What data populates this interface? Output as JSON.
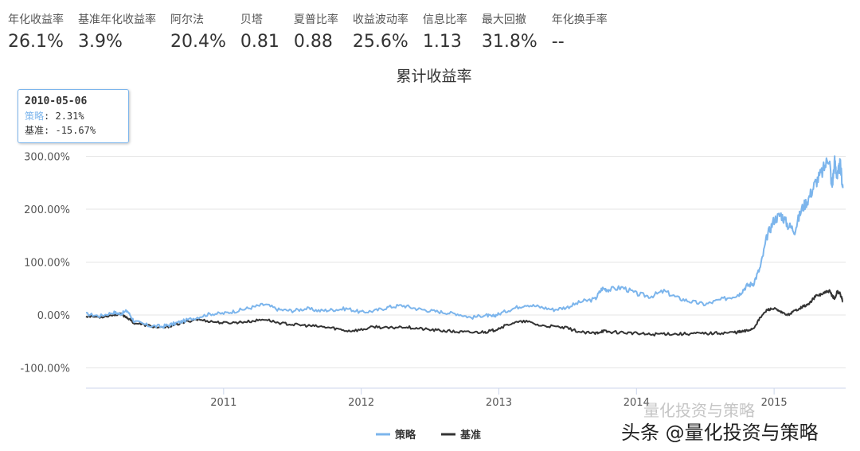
{
  "stats": [
    {
      "label": "年化收益率",
      "value": "26.1%"
    },
    {
      "label": "基准年化收益率",
      "value": "3.9%"
    },
    {
      "label": "阿尔法",
      "value": "20.4%"
    },
    {
      "label": "贝塔",
      "value": "0.81"
    },
    {
      "label": "夏普比率",
      "value": "0.88"
    },
    {
      "label": "收益波动率",
      "value": "25.6%"
    },
    {
      "label": "信息比率",
      "value": "1.13"
    },
    {
      "label": "最大回撤",
      "value": "31.8%"
    },
    {
      "label": "年化换手率",
      "value": "--"
    }
  ],
  "tooltip": {
    "date": "2010-05-06",
    "series1_name": "策略",
    "series1_value": "2.31%",
    "series2_name": "基准",
    "series2_value": "-15.67%"
  },
  "watermark": {
    "line1": "量化投资与策略",
    "line2": "头条 @量化投资与策略"
  },
  "chart_data": {
    "type": "line",
    "title": "累计收益率",
    "ylim": [
      -130,
      320
    ],
    "xlim": [
      2010.0,
      2015.52
    ],
    "yticks": [
      -100,
      0,
      100,
      200,
      300
    ],
    "ytick_labels": [
      "-100.00%",
      "0.00%",
      "100.00%",
      "200.00%",
      "300.00%"
    ],
    "xticks": [
      2011,
      2012,
      2013,
      2014,
      2015
    ],
    "xtick_labels": [
      "2011",
      "2012",
      "2013",
      "2014",
      "2015"
    ],
    "grid": "horizontal",
    "legend": "bottom-center",
    "colors": {
      "strategy": "#7cb5ec",
      "benchmark": "#333333"
    },
    "series": [
      {
        "name": "策略",
        "x": [
          2010.0,
          2010.1,
          2010.2,
          2010.25,
          2010.3,
          2010.35,
          2010.45,
          2010.55,
          2010.62,
          2010.7,
          2010.8,
          2010.9,
          2011.0,
          2011.1,
          2011.2,
          2011.3,
          2011.4,
          2011.5,
          2011.6,
          2011.7,
          2011.8,
          2011.9,
          2012.0,
          2012.1,
          2012.2,
          2012.3,
          2012.4,
          2012.5,
          2012.6,
          2012.7,
          2012.8,
          2012.9,
          2012.95,
          2013.0,
          2013.1,
          2013.2,
          2013.3,
          2013.4,
          2013.5,
          2013.6,
          2013.7,
          2013.75,
          2013.8,
          2013.9,
          2014.0,
          2014.1,
          2014.2,
          2014.3,
          2014.4,
          2014.5,
          2014.6,
          2014.7,
          2014.75,
          2014.8,
          2014.85,
          2014.9,
          2014.95,
          2015.0,
          2015.05,
          2015.1,
          2015.15,
          2015.2,
          2015.25,
          2015.3,
          2015.35,
          2015.4,
          2015.42,
          2015.44,
          2015.46,
          2015.48,
          2015.5
        ],
        "y": [
          2,
          -2,
          5,
          2,
          8,
          -12,
          -20,
          -22,
          -18,
          -12,
          -5,
          2,
          3,
          8,
          14,
          20,
          10,
          8,
          12,
          8,
          10,
          12,
          5,
          8,
          15,
          18,
          12,
          8,
          5,
          2,
          -5,
          0,
          -3,
          2,
          12,
          20,
          15,
          10,
          15,
          25,
          30,
          50,
          48,
          52,
          40,
          35,
          45,
          32,
          25,
          20,
          28,
          35,
          40,
          55,
          60,
          90,
          150,
          180,
          190,
          170,
          160,
          200,
          220,
          250,
          270,
          300,
          240,
          290,
          260,
          285,
          240
        ]
      },
      {
        "name": "基准",
        "x": [
          2010.0,
          2010.1,
          2010.2,
          2010.25,
          2010.3,
          2010.35,
          2010.45,
          2010.55,
          2010.62,
          2010.7,
          2010.8,
          2010.9,
          2011.0,
          2011.1,
          2011.2,
          2011.3,
          2011.4,
          2011.5,
          2011.6,
          2011.7,
          2011.8,
          2011.9,
          2012.0,
          2012.1,
          2012.2,
          2012.3,
          2012.4,
          2012.5,
          2012.6,
          2012.7,
          2012.8,
          2012.9,
          2012.95,
          2013.0,
          2013.1,
          2013.2,
          2013.3,
          2013.4,
          2013.5,
          2013.6,
          2013.7,
          2013.75,
          2013.8,
          2013.9,
          2014.0,
          2014.1,
          2014.2,
          2014.3,
          2014.4,
          2014.5,
          2014.6,
          2014.7,
          2014.75,
          2014.8,
          2014.85,
          2014.9,
          2014.95,
          2015.0,
          2015.05,
          2015.1,
          2015.15,
          2015.2,
          2015.25,
          2015.3,
          2015.35,
          2015.4,
          2015.42,
          2015.44,
          2015.46,
          2015.48,
          2015.5
        ],
        "y": [
          -2,
          -4,
          0,
          2,
          -5,
          -15,
          -20,
          -25,
          -20,
          -15,
          -8,
          -12,
          -15,
          -14,
          -12,
          -8,
          -15,
          -18,
          -20,
          -22,
          -25,
          -30,
          -28,
          -22,
          -25,
          -22,
          -25,
          -28,
          -30,
          -32,
          -33,
          -32,
          -30,
          -25,
          -15,
          -12,
          -20,
          -22,
          -25,
          -33,
          -35,
          -30,
          -32,
          -33,
          -35,
          -37,
          -35,
          -36,
          -35,
          -35,
          -34,
          -33,
          -32,
          -30,
          -25,
          -5,
          10,
          12,
          5,
          0,
          8,
          15,
          20,
          35,
          40,
          45,
          38,
          30,
          45,
          40,
          25
        ]
      }
    ]
  }
}
